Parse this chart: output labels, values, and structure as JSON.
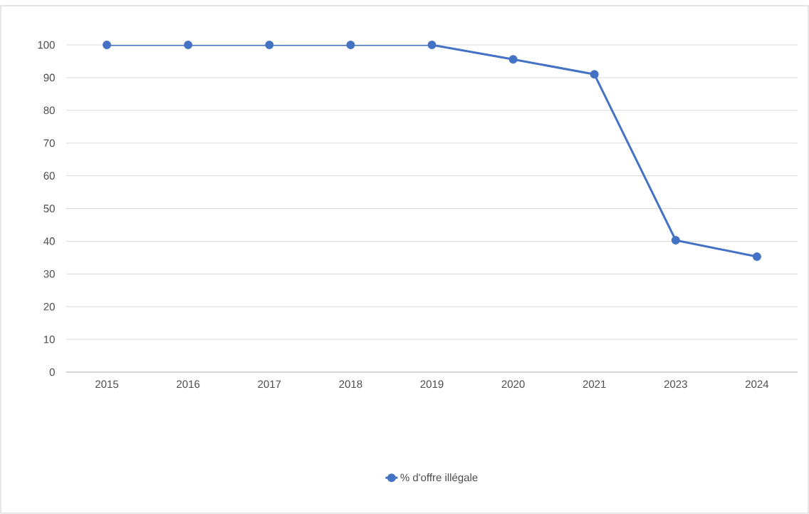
{
  "chart_data": {
    "type": "line",
    "categories": [
      "2015",
      "2016",
      "2017",
      "2018",
      "2019",
      "2020",
      "2021",
      "2023",
      "2024"
    ],
    "series": [
      {
        "name": "% d'offre illégale",
        "color": "#4472c4",
        "values": [
          100,
          100,
          100,
          100,
          100,
          95.6,
          91,
          40.3,
          35.3
        ]
      }
    ],
    "ylim": [
      0,
      100
    ],
    "yticks": [
      0,
      10,
      20,
      30,
      40,
      50,
      60,
      70,
      80,
      90,
      100
    ],
    "grid": "y",
    "legend": "bottom",
    "marker": "circle",
    "line_style": "solid"
  }
}
